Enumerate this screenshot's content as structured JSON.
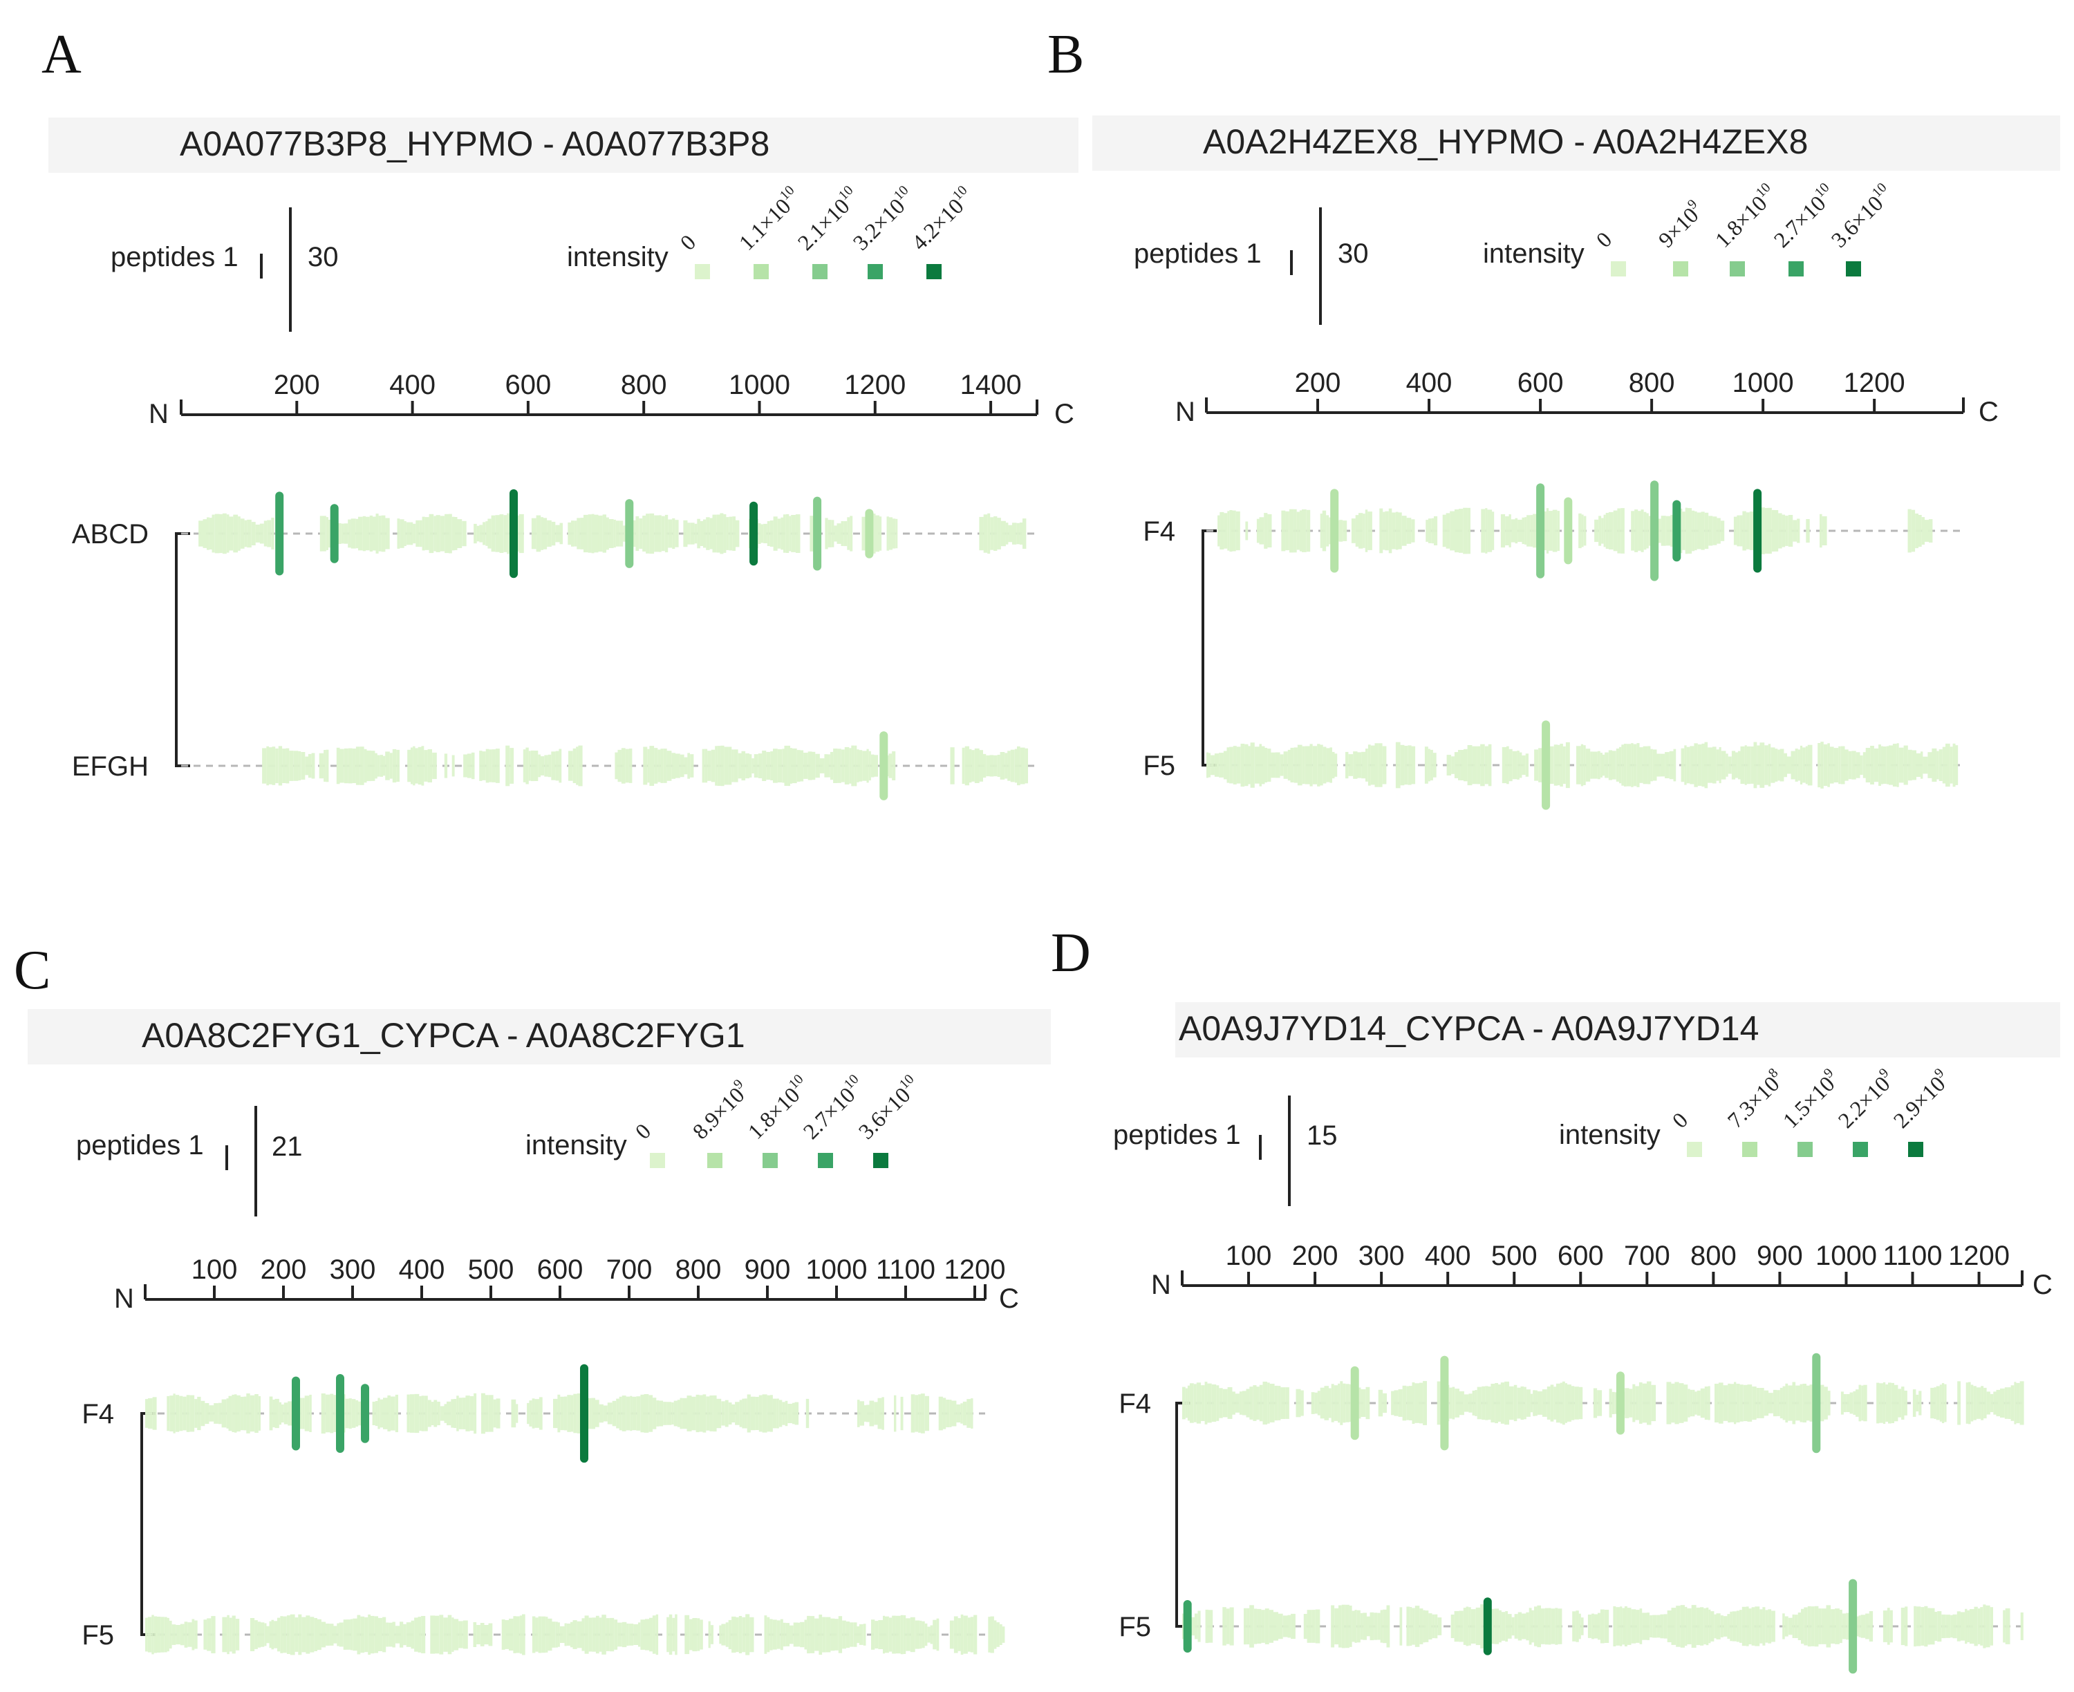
{
  "colors": {
    "scale": [
      "#dcf3cc",
      "#b6e3a8",
      "#85cc8e",
      "#3aa466",
      "#0b7a3e"
    ],
    "axis": "#222222",
    "dash": "#b7b7b7",
    "title_band": "#f4f4f4"
  },
  "chart_data": [
    {
      "panel": "A",
      "type": "peptide-coverage",
      "title": "A0A077B3P8_HYPMO - A0A077B3P8",
      "peptides_label": "peptides 1",
      "peptides_max": "30",
      "intensity_label": "intensity",
      "legend": [
        {
          "mant": "0",
          "exp": ""
        },
        {
          "mant": "1.1×10",
          "exp": "10"
        },
        {
          "mant": "2.1×10",
          "exp": "10"
        },
        {
          "mant": "3.2×10",
          "exp": "10"
        },
        {
          "mant": "4.2×10",
          "exp": "10"
        }
      ],
      "n_label": "N",
      "c_label": "C",
      "length": 1480,
      "ticks": [
        200,
        400,
        600,
        800,
        1000,
        1200,
        1400
      ],
      "tick_labels": [
        "200",
        "400",
        "600",
        "800",
        "1000",
        "1200",
        "1400"
      ],
      "samples": [
        {
          "name": "ABCD",
          "covered": [
            [
              30,
              160
            ],
            [
              240,
              1240
            ],
            [
              1380,
              1460
            ]
          ],
          "marks": [
            {
              "pos": 170,
              "level": 3,
              "h": 0.85
            },
            {
              "pos": 265,
              "level": 3,
              "h": 0.6
            },
            {
              "pos": 575,
              "level": 4,
              "h": 0.9
            },
            {
              "pos": 775,
              "level": 2,
              "h": 0.7
            },
            {
              "pos": 990,
              "level": 4,
              "h": 0.65
            },
            {
              "pos": 1100,
              "level": 2,
              "h": 0.75
            },
            {
              "pos": 1190,
              "level": 1,
              "h": 0.5
            }
          ]
        },
        {
          "name": "EFGH",
          "covered": [
            [
              140,
              690
            ],
            [
              750,
              1230
            ],
            [
              1330,
              1460
            ]
          ],
          "marks": [
            {
              "pos": 1215,
              "level": 1,
              "h": 0.7
            }
          ]
        }
      ]
    },
    {
      "panel": "B",
      "type": "peptide-coverage",
      "title": "A0A2H4ZEX8_HYPMO - A0A2H4ZEX8",
      "peptides_label": "peptides 1",
      "peptides_max": "30",
      "intensity_label": "intensity",
      "legend": [
        {
          "mant": "0",
          "exp": ""
        },
        {
          "mant": "9×10",
          "exp": "9"
        },
        {
          "mant": "1.8×10",
          "exp": "10"
        },
        {
          "mant": "2.7×10",
          "exp": "10"
        },
        {
          "mant": "3.6×10",
          "exp": "10"
        }
      ],
      "n_label": "N",
      "c_label": "C",
      "length": 1360,
      "ticks": [
        200,
        400,
        600,
        800,
        1000,
        1200
      ],
      "tick_labels": [
        "200",
        "400",
        "600",
        "800",
        "1000",
        "1200"
      ],
      "samples": [
        {
          "name": "F4",
          "covered": [
            [
              20,
              60
            ],
            [
              70,
              1110
            ],
            [
              1260,
              1300
            ]
          ],
          "marks": [
            {
              "pos": 230,
              "level": 1,
              "h": 0.75
            },
            {
              "pos": 600,
              "level": 2,
              "h": 0.85
            },
            {
              "pos": 650,
              "level": 1,
              "h": 0.6
            },
            {
              "pos": 805,
              "level": 2,
              "h": 0.9
            },
            {
              "pos": 845,
              "level": 3,
              "h": 0.55
            },
            {
              "pos": 990,
              "level": 4,
              "h": 0.75
            }
          ]
        },
        {
          "name": "F5",
          "covered": [
            [
              0,
              1350
            ]
          ],
          "marks": [
            {
              "pos": 610,
              "level": 1,
              "h": 0.8
            }
          ]
        }
      ]
    },
    {
      "panel": "C",
      "type": "peptide-coverage",
      "title": "A0A8C2FYG1_CYPCA - A0A8C2FYG1",
      "peptides_label": "peptides 1",
      "peptides_max": "21",
      "intensity_label": "intensity",
      "legend": [
        {
          "mant": "0",
          "exp": ""
        },
        {
          "mant": "8.9×10",
          "exp": "9"
        },
        {
          "mant": "1.8×10",
          "exp": "10"
        },
        {
          "mant": "2.7×10",
          "exp": "10"
        },
        {
          "mant": "3.6×10",
          "exp": "10"
        }
      ],
      "n_label": "N",
      "c_label": "C",
      "length": 1215,
      "ticks": [
        100,
        200,
        300,
        400,
        500,
        600,
        700,
        800,
        900,
        1000,
        1100,
        1200
      ],
      "tick_labels": [
        "100",
        "200",
        "300",
        "400",
        "500",
        "600",
        "700",
        "800",
        "900",
        "1000",
        "1100",
        "1200"
      ],
      "samples": [
        {
          "name": "F4",
          "covered": [
            [
              0,
              960
            ],
            [
              1030,
              1200
            ]
          ],
          "marks": [
            {
              "pos": 218,
              "level": 3,
              "h": 0.75
            },
            {
              "pos": 282,
              "level": 3,
              "h": 0.8
            },
            {
              "pos": 318,
              "level": 3,
              "h": 0.6
            },
            {
              "pos": 635,
              "level": 4,
              "h": 1.0
            }
          ]
        },
        {
          "name": "F5",
          "covered": [
            [
              0,
              1240
            ]
          ],
          "marks": []
        }
      ]
    },
    {
      "panel": "D",
      "type": "peptide-coverage",
      "title": "A0A9J7YD14_CYPCA - A0A9J7YD14",
      "peptides_label": "peptides 1",
      "peptides_max": "15",
      "intensity_label": "intensity",
      "legend": [
        {
          "mant": "0",
          "exp": ""
        },
        {
          "mant": "7.3×10",
          "exp": "8"
        },
        {
          "mant": "1.5×10",
          "exp": "9"
        },
        {
          "mant": "2.2×10",
          "exp": "9"
        },
        {
          "mant": "2.9×10",
          "exp": "9"
        }
      ],
      "n_label": "N",
      "c_label": "C",
      "length": 1265,
      "ticks": [
        100,
        200,
        300,
        400,
        500,
        600,
        700,
        800,
        900,
        1000,
        1100,
        1200
      ],
      "tick_labels": [
        "100",
        "200",
        "300",
        "400",
        "500",
        "600",
        "700",
        "800",
        "900",
        "1000",
        "1100",
        "1200"
      ],
      "samples": [
        {
          "name": "F4",
          "covered": [
            [
              0,
              1265
            ]
          ],
          "marks": [
            {
              "pos": 260,
              "level": 1,
              "h": 0.7
            },
            {
              "pos": 395,
              "level": 1,
              "h": 0.9
            },
            {
              "pos": 660,
              "level": 1,
              "h": 0.6
            },
            {
              "pos": 955,
              "level": 2,
              "h": 0.95
            }
          ]
        },
        {
          "name": "F5",
          "covered": [
            [
              0,
              1265
            ]
          ],
          "marks": [
            {
              "pos": 8,
              "level": 3,
              "h": 0.5
            },
            {
              "pos": 460,
              "level": 4,
              "h": 0.55
            },
            {
              "pos": 1010,
              "level": 2,
              "h": 0.9
            }
          ]
        }
      ]
    }
  ]
}
